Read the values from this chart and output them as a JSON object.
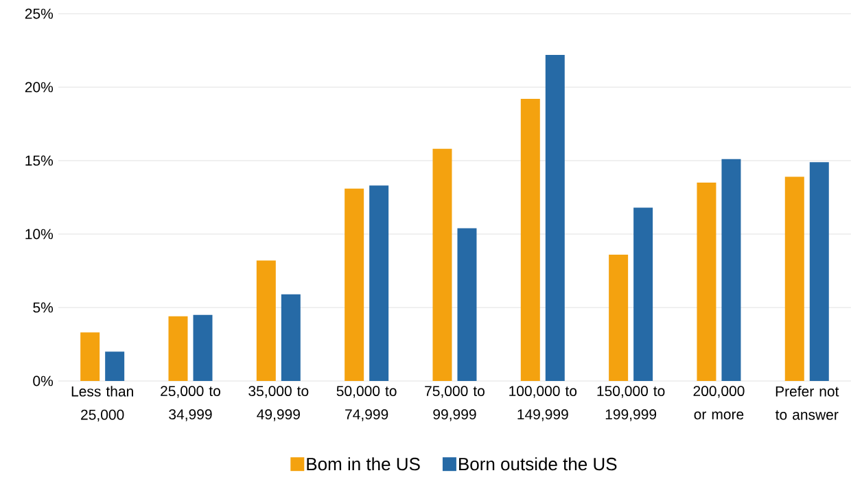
{
  "chart_data": {
    "type": "bar",
    "categories": [
      "Less than 25,000",
      "25,000 to 34,999",
      "35,000 to 49,999",
      "50,000 to 74,999",
      "75,000 to 99,999",
      "100,000 to 149,999",
      "150,000 to 199,999",
      "200,000 or more",
      "Prefer not to answer"
    ],
    "series": [
      {
        "name": "Bom in the US",
        "color": "#f4a20f",
        "values": [
          3.3,
          4.4,
          8.2,
          13.1,
          15.8,
          19.2,
          8.6,
          13.5,
          13.9
        ]
      },
      {
        "name": "Born outside the US",
        "color": "#266aa6",
        "values": [
          2.0,
          4.5,
          5.9,
          13.3,
          10.4,
          22.2,
          11.8,
          15.1,
          14.9
        ]
      }
    ],
    "ylim": [
      0,
      25
    ],
    "yticks": [
      {
        "value": 0,
        "label": "0%"
      },
      {
        "value": 5,
        "label": "5%"
      },
      {
        "value": 10,
        "label": "10%"
      },
      {
        "value": 15,
        "label": "15%"
      },
      {
        "value": 20,
        "label": "20%"
      },
      {
        "value": 25,
        "label": "25%"
      }
    ],
    "grid": "y",
    "legend": "bottom"
  }
}
